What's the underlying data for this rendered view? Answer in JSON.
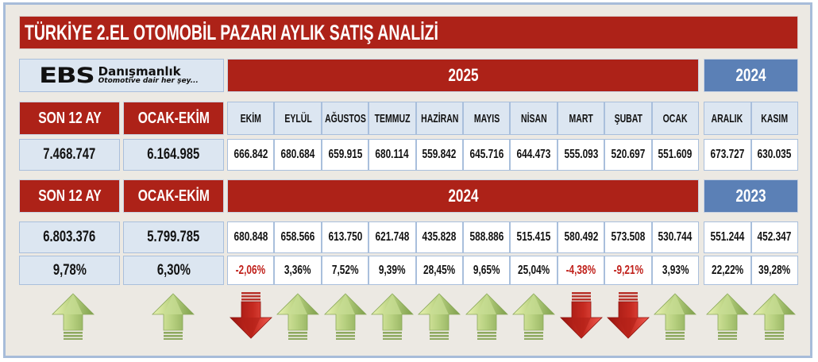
{
  "title": "TÜRKİYE 2.EL OTOMOBİL PAZARI AYLIK SATIŞ ANALİZİ",
  "logo": {
    "brand": "EBS",
    "name": "Danışmanlık",
    "tagline": "Otomotive dair her şey..."
  },
  "colors": {
    "red": "#ad2218",
    "blue": "#5b80b6",
    "light": "#dce6f1",
    "up_arrow": "#a8c878",
    "down_arrow": "#c0201a",
    "negative_text": "#c0201a"
  },
  "section1": {
    "year_main": "2025",
    "year_prev": "2024",
    "summary_headers": [
      "SON 12 AY",
      "OCAK-EKİM"
    ],
    "summary_values": [
      "7.468.747",
      "6.164.985"
    ],
    "months": [
      "EKİM",
      "EYLÜL",
      "AĞUSTOS",
      "TEMMUZ",
      "HAZİRAN",
      "MAYIS",
      "NİSAN",
      "MART",
      "ŞUBAT",
      "OCAK",
      "ARALIK",
      "KASIM"
    ],
    "values": [
      "666.842",
      "680.684",
      "659.915",
      "680.114",
      "559.842",
      "645.716",
      "644.473",
      "555.093",
      "520.697",
      "551.609",
      "673.727",
      "630.035"
    ]
  },
  "section2": {
    "year_main": "2024",
    "year_prev": "2023",
    "summary_headers": [
      "SON 12 AY",
      "OCAK-EKİM"
    ],
    "summary_values": [
      "6.803.376",
      "5.799.785"
    ],
    "summary_pct": [
      "9,78%",
      "6,30%"
    ],
    "values": [
      "680.848",
      "658.566",
      "613.750",
      "621.748",
      "435.828",
      "588.886",
      "515.415",
      "580.492",
      "573.508",
      "530.744",
      "551.244",
      "452.347"
    ],
    "pct": [
      "-2,06%",
      "3,36%",
      "7,52%",
      "9,39%",
      "28,45%",
      "9,65%",
      "25,04%",
      "-4,38%",
      "-9,21%",
      "3,93%",
      "22,22%",
      "39,28%"
    ]
  },
  "arrows": {
    "summary": [
      "up",
      "up"
    ],
    "months": [
      "down",
      "up",
      "up",
      "up",
      "up",
      "up",
      "up",
      "down",
      "down",
      "up",
      "up",
      "up"
    ]
  }
}
